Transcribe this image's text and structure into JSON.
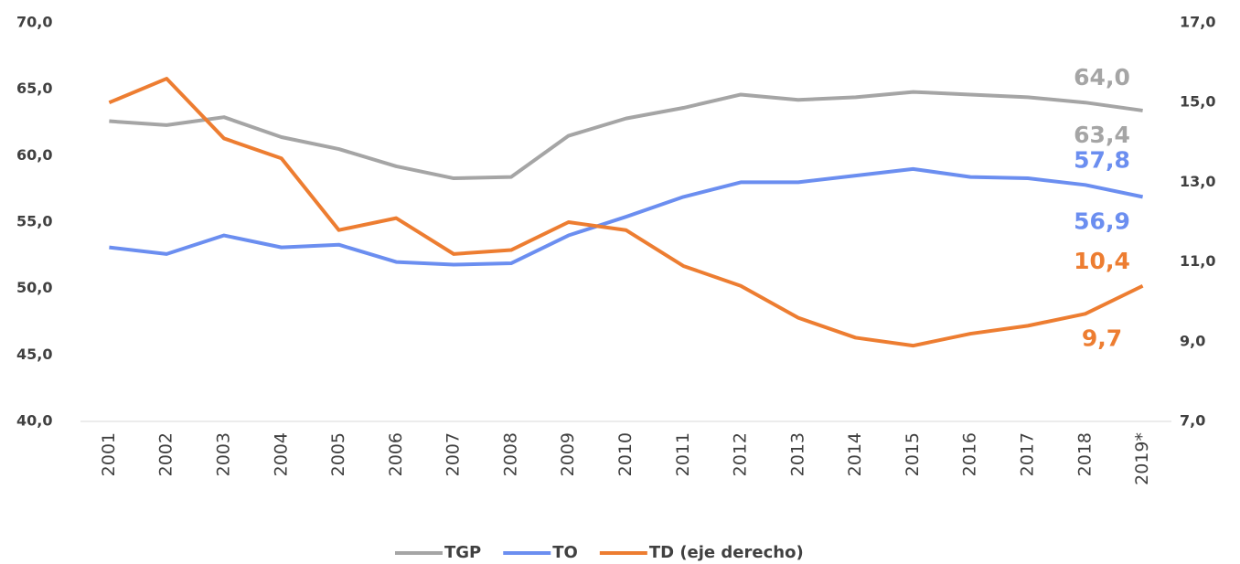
{
  "chart_data": {
    "type": "line",
    "categories": [
      "2001",
      "2002",
      "2003",
      "2004",
      "2005",
      "2006",
      "2007",
      "2008",
      "2009",
      "2010",
      "2011",
      "2012",
      "2013",
      "2014",
      "2015",
      "2016",
      "2017",
      "2018",
      "2019*"
    ],
    "series": [
      {
        "name": "TGP",
        "color": "#a5a5a5",
        "axis": "y",
        "values": [
          62.6,
          62.3,
          62.9,
          61.4,
          60.5,
          59.2,
          58.3,
          58.4,
          61.5,
          62.8,
          63.6,
          64.6,
          64.2,
          64.4,
          64.8,
          64.6,
          64.4,
          64.0,
          63.4
        ],
        "value_labels": [
          null,
          null,
          null,
          null,
          null,
          null,
          null,
          null,
          null,
          null,
          null,
          null,
          null,
          null,
          null,
          null,
          null,
          "64,0",
          "63,4"
        ]
      },
      {
        "name": "TO",
        "color": "#6b8ef0",
        "axis": "y",
        "values": [
          53.1,
          52.6,
          54.0,
          53.1,
          53.3,
          52.0,
          51.8,
          51.9,
          54.0,
          55.4,
          56.9,
          58.0,
          58.0,
          58.5,
          59.0,
          58.4,
          58.3,
          57.8,
          56.9
        ],
        "value_labels": [
          null,
          null,
          null,
          null,
          null,
          null,
          null,
          null,
          null,
          null,
          null,
          null,
          null,
          null,
          null,
          null,
          null,
          "57,8",
          "56,9"
        ]
      },
      {
        "name": "TD (eje derecho)",
        "color": "#ed7d31",
        "axis": "y2",
        "values": [
          15.0,
          15.6,
          14.1,
          13.6,
          11.8,
          12.1,
          11.2,
          11.3,
          12.0,
          11.8,
          10.9,
          10.4,
          9.6,
          9.1,
          8.9,
          9.2,
          9.4,
          9.7,
          10.4
        ],
        "value_labels": [
          null,
          null,
          null,
          null,
          null,
          null,
          null,
          null,
          null,
          null,
          null,
          null,
          null,
          null,
          null,
          null,
          null,
          "9,7",
          "10,4"
        ]
      }
    ],
    "ylim": [
      40,
      70
    ],
    "yticks": [
      {
        "value": 40,
        "label": "40,0"
      },
      {
        "value": 45,
        "label": "45,0"
      },
      {
        "value": 50,
        "label": "50,0"
      },
      {
        "value": 55,
        "label": "55,0"
      },
      {
        "value": 60,
        "label": "60,0"
      },
      {
        "value": 65,
        "label": "65,0"
      },
      {
        "value": 70,
        "label": "70,0"
      }
    ],
    "y2lim": [
      7,
      17
    ],
    "y2ticks": [
      {
        "value": 7,
        "label": "7,0"
      },
      {
        "value": 9,
        "label": "9,0"
      },
      {
        "value": 11,
        "label": "11,0"
      },
      {
        "value": 13,
        "label": "13,0"
      },
      {
        "value": 15,
        "label": "15,0"
      },
      {
        "value": 17,
        "label": "17,0"
      }
    ],
    "legend": "bottom"
  }
}
